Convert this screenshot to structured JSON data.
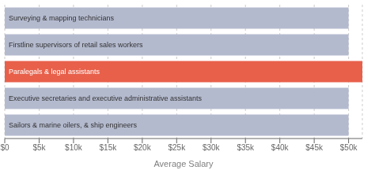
{
  "chart_data": {
    "type": "bar",
    "orientation": "horizontal",
    "categories": [
      "Sailors & marine oilers, & ship engineers",
      "Executive secretaries and executive administrative assistants",
      "Paralegals & legal assistants",
      "Firstline supervisors of retail sales workers",
      "Surveying & mapping technicians"
    ],
    "values": [
      50000,
      50000,
      52000,
      50000,
      50000
    ],
    "colors": [
      "#b4bace",
      "#b4bace",
      "#e8604a",
      "#b4bace",
      "#b4bace"
    ],
    "xlabel": "Average Salary",
    "xlim": [
      0,
      52000
    ],
    "xticks": [
      {
        "value": 0,
        "label": "$0"
      },
      {
        "value": 5000,
        "label": "$5k"
      },
      {
        "value": 10000,
        "label": "$10k"
      },
      {
        "value": 15000,
        "label": "$15k"
      },
      {
        "value": 20000,
        "label": "$20k"
      },
      {
        "value": 25000,
        "label": "$25k"
      },
      {
        "value": 30000,
        "label": "$30k"
      },
      {
        "value": 35000,
        "label": "$35k"
      },
      {
        "value": 40000,
        "label": "$40k"
      },
      {
        "value": 45000,
        "label": "$45k"
      },
      {
        "value": 50000,
        "label": "$50k"
      }
    ],
    "grid": true,
    "tick_labels": "x"
  }
}
